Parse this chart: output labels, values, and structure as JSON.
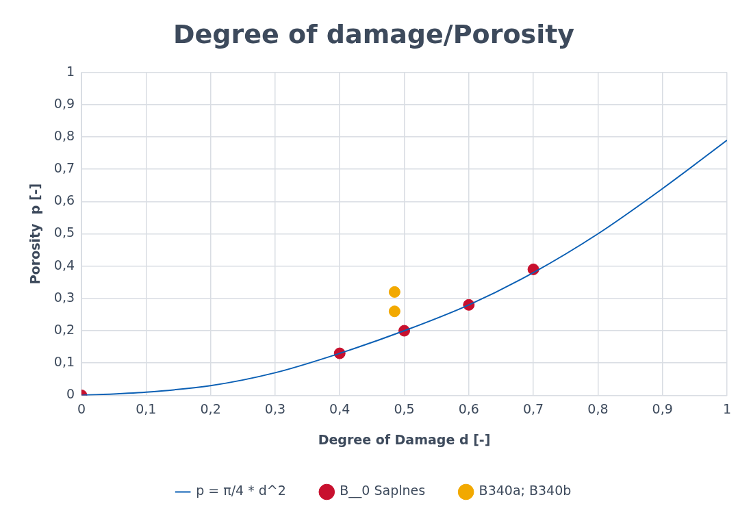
{
  "chart_data": {
    "type": "scatter",
    "title": "Degree of damage/Porosity",
    "xlabel": "Degree of Damage d [-]",
    "ylabel": "Porosity  p [-]",
    "xlim": [
      0,
      1
    ],
    "xticks": [
      {
        "value": 0,
        "label": "0"
      },
      {
        "value": 0.1,
        "label": "0,1"
      },
      {
        "value": 0.2,
        "label": "0,2"
      },
      {
        "value": 0.3,
        "label": "0,3"
      },
      {
        "value": 0.4,
        "label": "0,4"
      },
      {
        "value": 0.5,
        "label": "0,5"
      },
      {
        "value": 0.6,
        "label": "0,6"
      },
      {
        "value": 0.7,
        "label": "0,7"
      },
      {
        "value": 0.8,
        "label": "0,8"
      },
      {
        "value": 0.9,
        "label": "0,9"
      },
      {
        "value": 1,
        "label": "1"
      }
    ],
    "ylim": [
      0,
      1
    ],
    "yticks": [
      {
        "value": 0,
        "label": "0"
      },
      {
        "value": 0.1,
        "label": "0,1"
      },
      {
        "value": 0.2,
        "label": "0,2"
      },
      {
        "value": 0.3,
        "label": "0,3"
      },
      {
        "value": 0.4,
        "label": "0,4"
      },
      {
        "value": 0.5,
        "label": "0,5"
      },
      {
        "value": 0.6,
        "label": "0,6"
      },
      {
        "value": 0.7,
        "label": "0,7"
      },
      {
        "value": 0.8,
        "label": "0,8"
      },
      {
        "value": 0.9,
        "label": "0,9"
      },
      {
        "value": 1,
        "label": "1"
      }
    ],
    "grid": true,
    "legend": "bottom",
    "marker": "circle",
    "series": [
      {
        "name": "p = π/4 * d^2",
        "type": "line",
        "color": "#0a5fb4",
        "marker": "none",
        "line_style": "solid",
        "x": [
          0,
          0.1,
          0.2,
          0.3,
          0.4,
          0.5,
          0.6,
          0.7,
          0.8,
          0.9,
          1
        ],
        "values": [
          0,
          0.01,
          0.03,
          0.07,
          0.13,
          0.2,
          0.28,
          0.38,
          0.5,
          0.64,
          0.79
        ]
      },
      {
        "name": "B__0 Saplnes",
        "color": "#c8102e",
        "x": [
          0,
          0.4,
          0.5,
          0.6,
          0.7
        ],
        "values": [
          0,
          0.13,
          0.2,
          0.28,
          0.39
        ]
      },
      {
        "name": "B340a; B340b",
        "color": "#f2a900",
        "x": [
          0.485,
          0.485
        ],
        "values": [
          0.32,
          0.26
        ]
      }
    ]
  }
}
